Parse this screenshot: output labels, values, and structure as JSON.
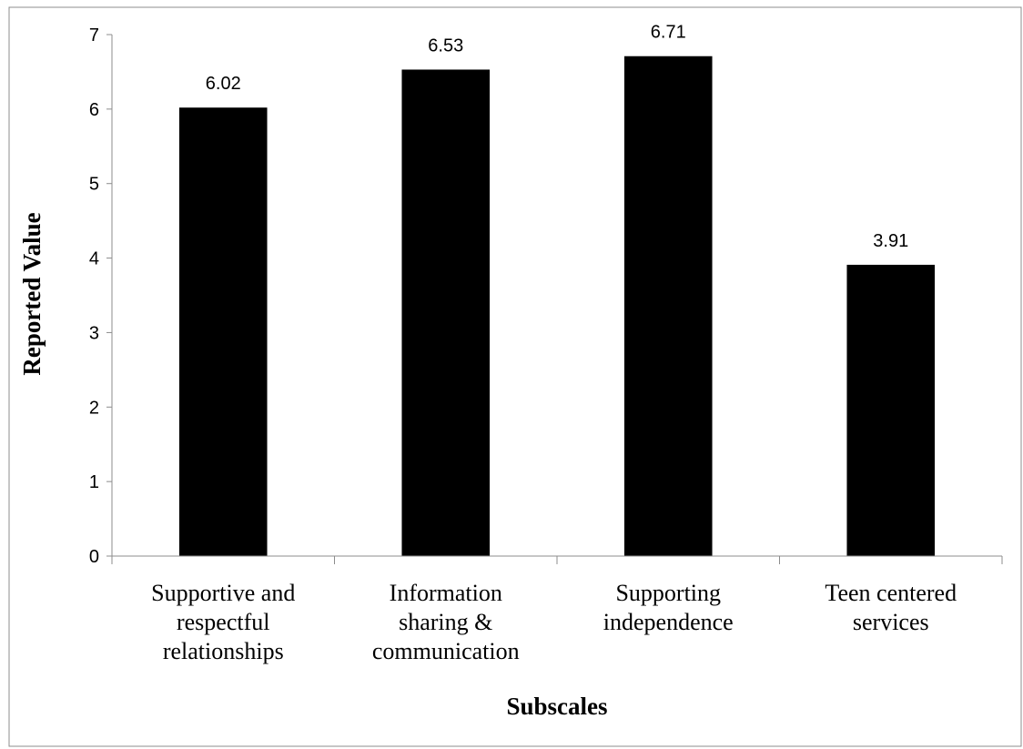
{
  "chart_data": {
    "type": "bar",
    "categories": [
      [
        "Supportive and",
        "respectful",
        "relationships"
      ],
      [
        "Information",
        "sharing &",
        "communication"
      ],
      [
        "Supporting",
        "independence"
      ],
      [
        "Teen centered",
        "services"
      ]
    ],
    "values": [
      6.02,
      6.53,
      6.71,
      3.91
    ],
    "value_labels": [
      "6.02",
      "6.53",
      "6.71",
      "3.91"
    ],
    "xlabel": "Subscales",
    "ylabel": "Reported Value",
    "ylim": [
      0,
      7
    ],
    "yticks": [
      "0",
      "1",
      "2",
      "3",
      "4",
      "5",
      "6",
      "7"
    ],
    "bar_color": "#000000",
    "grid": false,
    "legend": false
  }
}
